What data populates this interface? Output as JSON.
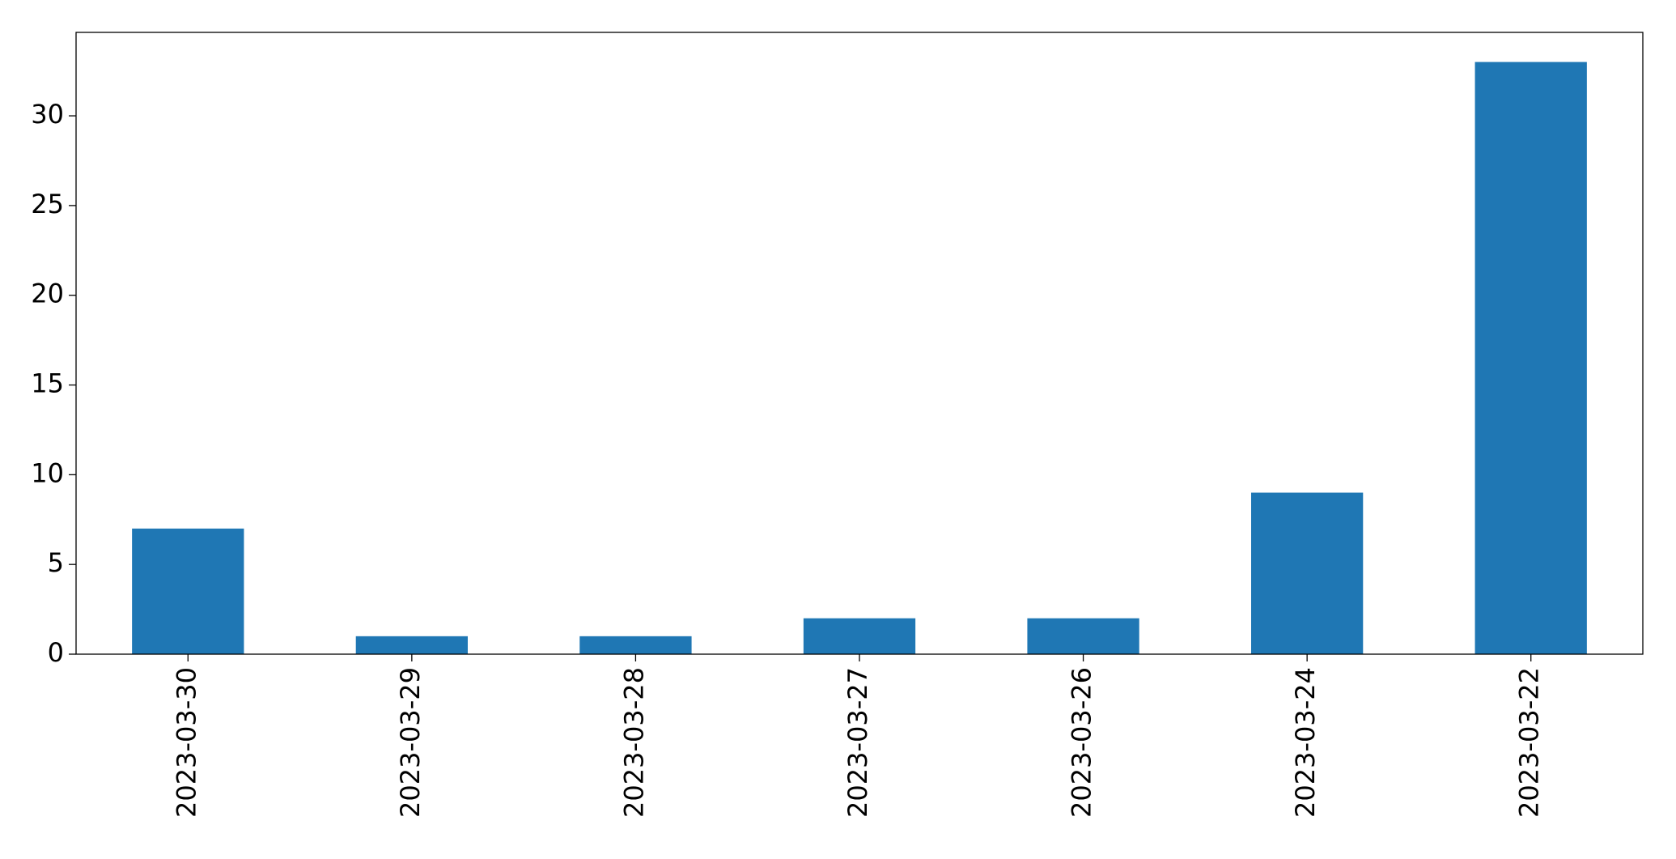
{
  "chart_data": {
    "type": "bar",
    "categories": [
      "2023-03-30",
      "2023-03-29",
      "2023-03-28",
      "2023-03-27",
      "2023-03-26",
      "2023-03-24",
      "2023-03-22"
    ],
    "values": [
      7,
      1,
      1,
      2,
      2,
      9,
      33
    ],
    "color": "#1f77b4",
    "ylim": [
      0,
      34.65
    ],
    "yticks": [
      0,
      5,
      10,
      15,
      20,
      25,
      30
    ],
    "grid": false
  }
}
